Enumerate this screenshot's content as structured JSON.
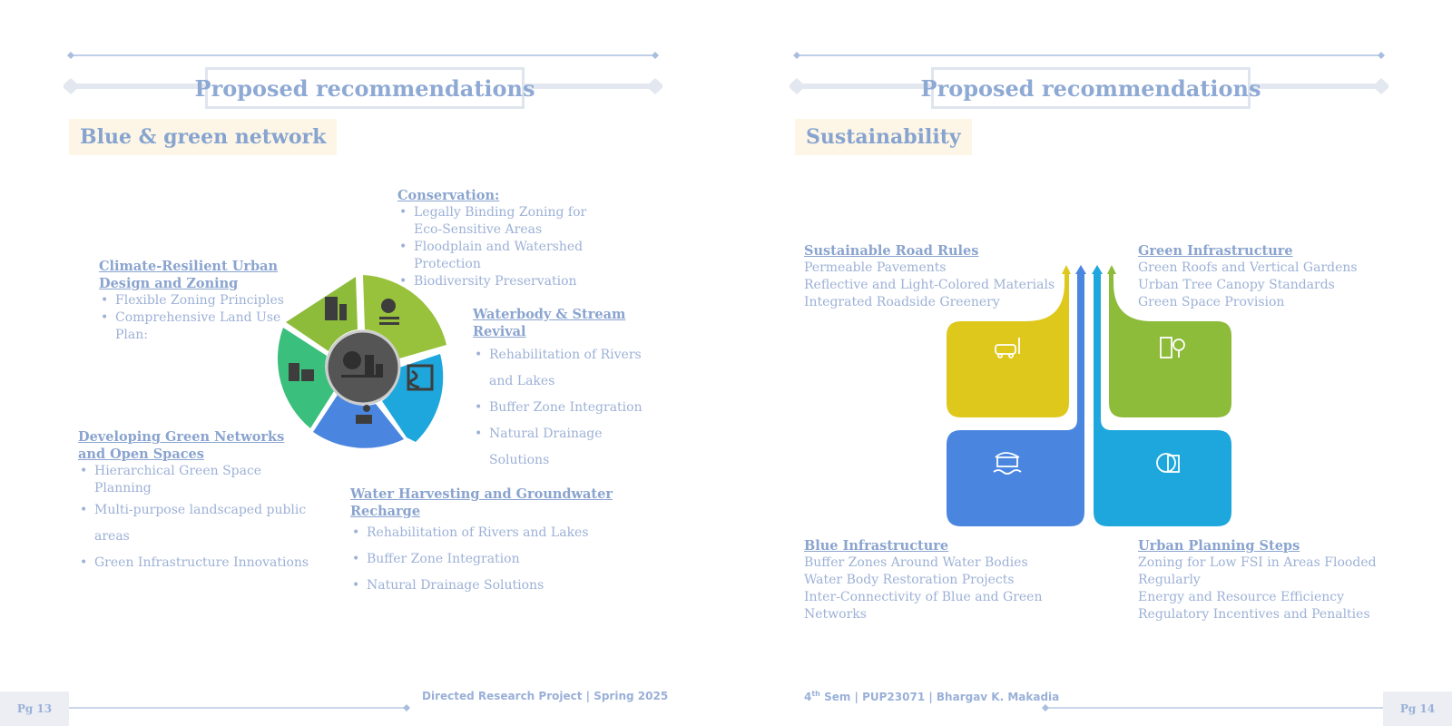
{
  "left": {
    "title": "Proposed recommendations",
    "subtitle": "Blue & green network",
    "conservation": {
      "heading": "Conservation:",
      "items": [
        "Legally Binding Zoning for Eco-Sensitive Areas",
        "Floodplain and Watershed Protection",
        "Biodiversity Preservation"
      ]
    },
    "climate": {
      "heading": "Climate-Resilient Urban Design and Zoning",
      "items": [
        "Flexible Zoning Principles",
        "Comprehensive Land Use Plan:"
      ]
    },
    "waterbody": {
      "heading": "Waterbody & Stream Revival",
      "items": [
        "Rehabilitation of Rivers and Lakes",
        "Buffer Zone Integration",
        "Natural Drainage Solutions"
      ]
    },
    "green_networks": {
      "heading": "Developing Green Networks and Open Spaces",
      "items": [
        "Hierarchical Green Space Planning",
        "Multi-purpose landscaped public areas",
        "Green Infrastructure Innovations"
      ]
    },
    "harvesting": {
      "heading": "Water Harvesting and Groundwater Recharge",
      "items": [
        "Rehabilitation of Rivers and Lakes",
        "Buffer Zone Integration",
        "Natural Drainage Solutions"
      ]
    },
    "wheel_colors": [
      "#8dbb3a",
      "#3bbf7c",
      "#4a86e0",
      "#1ea7dc",
      "#98c23c"
    ],
    "page_label": "Pg 13",
    "footer": "Directed Research Project | Spring 2025"
  },
  "right": {
    "title": "Proposed recommendations",
    "subtitle": "Sustainability",
    "road": {
      "heading": "Sustainable Road Rules",
      "items": [
        "Permeable Pavements",
        "Reflective and Light-Colored Materials",
        "Integrated Roadside Greenery"
      ]
    },
    "green": {
      "heading": "Green Infrastructure",
      "items": [
        "Green Roofs and Vertical Gardens",
        "Urban Tree Canopy Standards",
        "Green Space Provision"
      ]
    },
    "blue": {
      "heading": "Blue Infrastructure",
      "items": [
        "Buffer Zones Around Water Bodies",
        "Water Body Restoration Projects",
        "Inter-Connectivity of Blue and Green Networks"
      ]
    },
    "planning": {
      "heading": "Urban Planning Steps",
      "items": [
        "Zoning for Low FSI in Areas Flooded Regularly",
        "Energy and Resource Efficiency",
        "Regulatory Incentives and Penalties"
      ]
    },
    "quad_colors": {
      "yellow": "#dfc81c",
      "green": "#8dbb3a",
      "blue": "#4a86e0",
      "cyan": "#1ea7dc"
    },
    "footer_prefix": "4",
    "footer_sup": "th",
    "footer_rest": " Sem | PUP23071 | Bhargav K. Makadia",
    "page_label": "Pg 14"
  }
}
